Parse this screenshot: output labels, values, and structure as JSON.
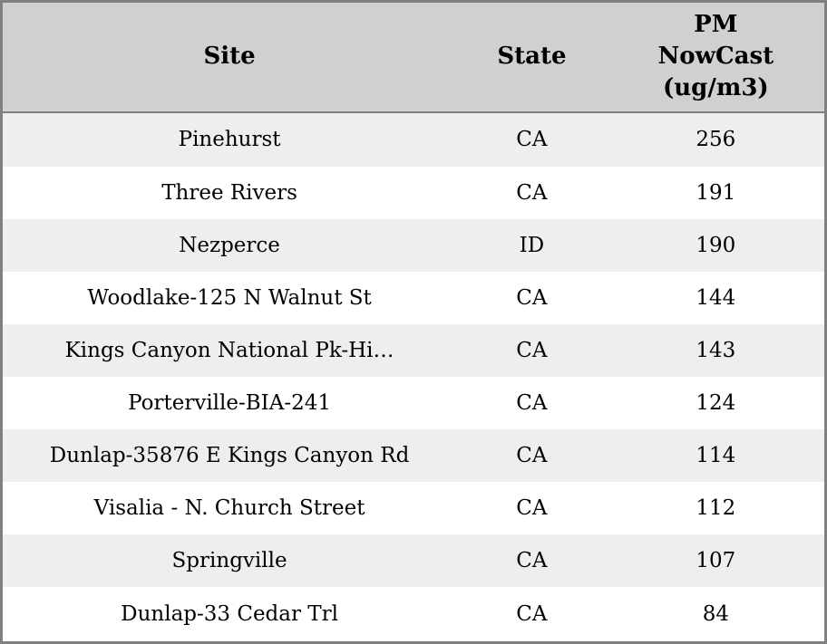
{
  "colors": {
    "header_bg": "#d0d0d0",
    "row_stripe_bg": "#eeeeee",
    "row_bg": "#ffffff",
    "border": "#808080",
    "text": "#000000"
  },
  "display": {
    "headers": [
      "Site",
      "State",
      "PM\nNowCast\n(ug/m3)"
    ]
  },
  "chart_data": {
    "type": "table",
    "columns": [
      "Site",
      "State",
      "PM NowCast (ug/m3)"
    ],
    "rows": [
      [
        "Pinehurst",
        "CA",
        256
      ],
      [
        "Three Rivers",
        "CA",
        191
      ],
      [
        "Nezperce",
        "ID",
        190
      ],
      [
        "Woodlake-125 N Walnut St",
        "CA",
        144
      ],
      [
        "Kings Canyon National Pk-Hi…",
        "CA",
        143
      ],
      [
        "Porterville-BIA-241",
        "CA",
        124
      ],
      [
        "Dunlap-35876 E Kings Canyon Rd",
        "CA",
        114
      ],
      [
        "Visalia - N. Church Street",
        "CA",
        112
      ],
      [
        "Springville",
        "CA",
        107
      ],
      [
        "Dunlap-33 Cedar Trl",
        "CA",
        84
      ]
    ]
  }
}
